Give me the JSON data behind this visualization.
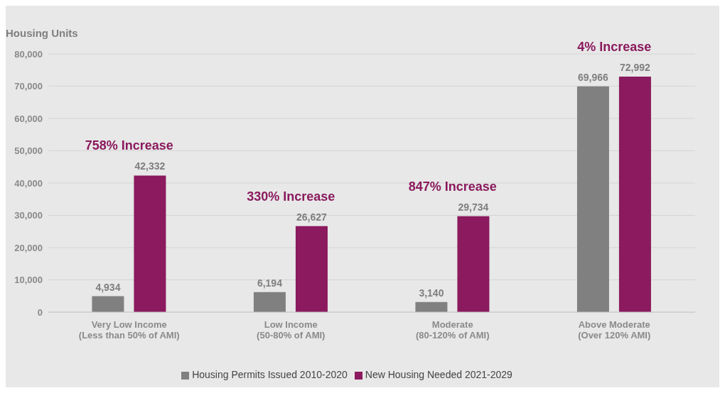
{
  "chart_data": {
    "type": "bar",
    "ylabel": "Housing Units",
    "categories": [
      "Very Low Income\n(Less than 50% of AMI)",
      "Low Income\n(50-80% of AMI)",
      "Moderate\n(80-120% of AMI)",
      "Above Moderate\n(Over 120% AMI)"
    ],
    "series": [
      {
        "name": "Housing Permits Issued 2010-2020",
        "color": "#808080",
        "values": [
          4934,
          6194,
          3140,
          69966
        ],
        "value_labels": [
          "4,934",
          "6,194",
          "3,140",
          "69,966"
        ]
      },
      {
        "name": "New Housing Needed 2021-2029",
        "color": "#8b1a5e",
        "values": [
          42332,
          26627,
          29734,
          72992
        ],
        "value_labels": [
          "42,332",
          "26,627",
          "29,734",
          "72,992"
        ]
      }
    ],
    "ylim": [
      0,
      80000
    ],
    "yticks": [
      {
        "value": 0,
        "label": "0"
      },
      {
        "value": 10000,
        "label": "10,000"
      },
      {
        "value": 20000,
        "label": "20,000"
      },
      {
        "value": 30000,
        "label": "30,000"
      },
      {
        "value": 40000,
        "label": "40,000"
      },
      {
        "value": 50000,
        "label": "50,000"
      },
      {
        "value": 60000,
        "label": "60,000"
      },
      {
        "value": 70000,
        "label": "70,000"
      },
      {
        "value": 80000,
        "label": "80,000"
      }
    ],
    "annotations": [
      "758% Increase",
      "330% Increase",
      "847% Increase",
      "4% Increase"
    ],
    "grid": "y",
    "legend": "bottom"
  }
}
